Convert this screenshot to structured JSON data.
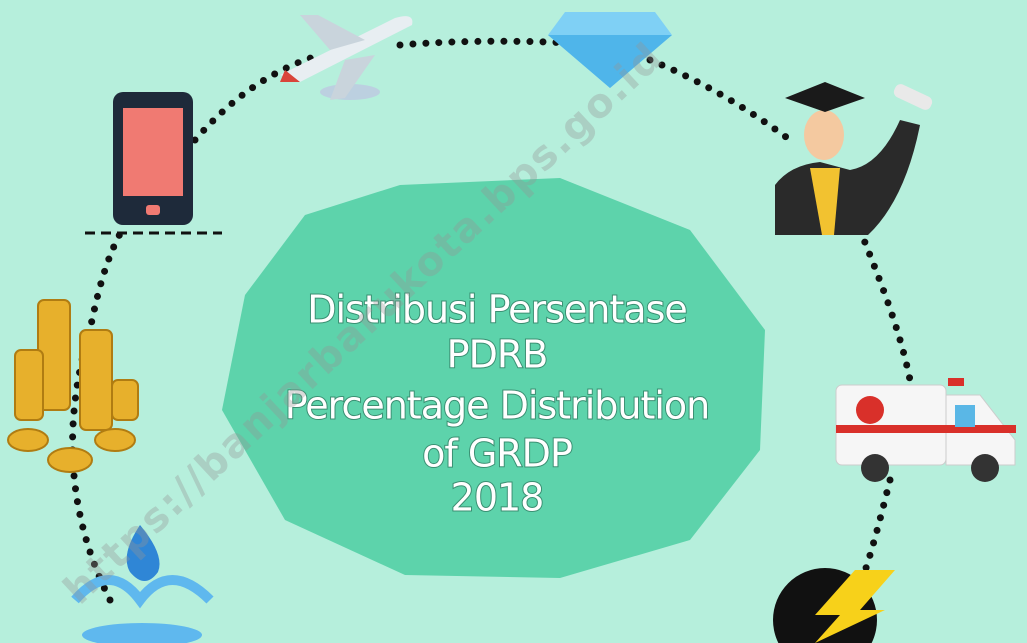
{
  "cover": {
    "title_lines": [
      "Distribusi Persentase",
      "PDRB",
      "Percentage Distribution",
      "of GRDP",
      "2018"
    ],
    "watermark": "https://banjarbarukota.bps.go.id"
  }
}
